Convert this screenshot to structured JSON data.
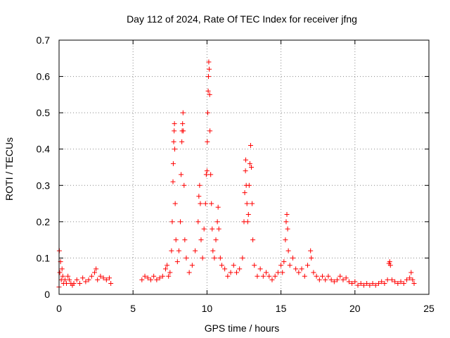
{
  "chart_data": {
    "type": "scatter",
    "title": "Day 112 of 2024, Rate Of TEC Index for receiver jfng",
    "xlabel": "GPS time / hours",
    "ylabel": "ROTI / TECUs",
    "xlim": [
      0,
      25
    ],
    "ylim": [
      0,
      0.7
    ],
    "x_ticks": [
      0,
      5,
      10,
      15,
      20,
      25
    ],
    "x_tick_labels": [
      "0",
      "5",
      "10",
      "15",
      "20",
      "25"
    ],
    "y_ticks": [
      0,
      0.1,
      0.2,
      0.3,
      0.4,
      0.5,
      0.6,
      0.7
    ],
    "y_tick_labels": [
      "0",
      "0.1",
      "0.2",
      "0.3",
      "0.4",
      "0.5",
      "0.6",
      "0.7"
    ],
    "grid": true,
    "marker": "+",
    "marker_color": "#ff0000",
    "series": [
      {
        "name": "ROTI",
        "points": [
          [
            0.0,
            0.02
          ],
          [
            0.02,
            0.12
          ],
          [
            0.05,
            0.06
          ],
          [
            0.1,
            0.09
          ],
          [
            0.15,
            0.04
          ],
          [
            0.2,
            0.07
          ],
          [
            0.25,
            0.05
          ],
          [
            0.3,
            0.03
          ],
          [
            0.4,
            0.04
          ],
          [
            0.5,
            0.03
          ],
          [
            0.6,
            0.05
          ],
          [
            0.7,
            0.04
          ],
          [
            0.8,
            0.03
          ],
          [
            0.9,
            0.025
          ],
          [
            1.0,
            0.03
          ],
          [
            1.2,
            0.04
          ],
          [
            1.4,
            0.03
          ],
          [
            1.6,
            0.045
          ],
          [
            1.8,
            0.035
          ],
          [
            2.0,
            0.04
          ],
          [
            2.2,
            0.05
          ],
          [
            2.4,
            0.06
          ],
          [
            2.5,
            0.07
          ],
          [
            2.6,
            0.04
          ],
          [
            2.8,
            0.05
          ],
          [
            3.0,
            0.045
          ],
          [
            3.2,
            0.04
          ],
          [
            3.4,
            0.045
          ],
          [
            3.5,
            0.03
          ],
          [
            5.6,
            0.04
          ],
          [
            5.8,
            0.05
          ],
          [
            6.0,
            0.045
          ],
          [
            6.2,
            0.04
          ],
          [
            6.4,
            0.05
          ],
          [
            6.6,
            0.04
          ],
          [
            6.8,
            0.045
          ],
          [
            7.0,
            0.05
          ],
          [
            7.2,
            0.07
          ],
          [
            7.3,
            0.08
          ],
          [
            7.4,
            0.05
          ],
          [
            7.5,
            0.06
          ],
          [
            7.6,
            0.12
          ],
          [
            7.65,
            0.2
          ],
          [
            7.7,
            0.31
          ],
          [
            7.72,
            0.36
          ],
          [
            7.75,
            0.42
          ],
          [
            7.78,
            0.45
          ],
          [
            7.8,
            0.47
          ],
          [
            7.82,
            0.4
          ],
          [
            7.85,
            0.25
          ],
          [
            7.9,
            0.15
          ],
          [
            8.0,
            0.09
          ],
          [
            8.1,
            0.12
          ],
          [
            8.2,
            0.2
          ],
          [
            8.25,
            0.33
          ],
          [
            8.3,
            0.42
          ],
          [
            8.32,
            0.45
          ],
          [
            8.35,
            0.47
          ],
          [
            8.38,
            0.5
          ],
          [
            8.4,
            0.45
          ],
          [
            8.45,
            0.3
          ],
          [
            8.5,
            0.15
          ],
          [
            8.6,
            0.1
          ],
          [
            8.8,
            0.06
          ],
          [
            9.0,
            0.08
          ],
          [
            9.2,
            0.12
          ],
          [
            9.4,
            0.2
          ],
          [
            9.45,
            0.27
          ],
          [
            9.5,
            0.3
          ],
          [
            9.55,
            0.25
          ],
          [
            9.6,
            0.15
          ],
          [
            9.7,
            0.1
          ],
          [
            9.8,
            0.18
          ],
          [
            9.9,
            0.25
          ],
          [
            9.95,
            0.33
          ],
          [
            10.0,
            0.34
          ],
          [
            10.02,
            0.42
          ],
          [
            10.05,
            0.5
          ],
          [
            10.08,
            0.56
          ],
          [
            10.1,
            0.6
          ],
          [
            10.12,
            0.64
          ],
          [
            10.15,
            0.62
          ],
          [
            10.18,
            0.55
          ],
          [
            10.2,
            0.45
          ],
          [
            10.25,
            0.33
          ],
          [
            10.3,
            0.25
          ],
          [
            10.35,
            0.18
          ],
          [
            10.4,
            0.12
          ],
          [
            10.5,
            0.1
          ],
          [
            10.6,
            0.15
          ],
          [
            10.7,
            0.2
          ],
          [
            10.75,
            0.24
          ],
          [
            10.8,
            0.18
          ],
          [
            10.9,
            0.1
          ],
          [
            11.0,
            0.08
          ],
          [
            11.2,
            0.07
          ],
          [
            11.4,
            0.05
          ],
          [
            11.6,
            0.06
          ],
          [
            11.8,
            0.08
          ],
          [
            12.0,
            0.06
          ],
          [
            12.2,
            0.07
          ],
          [
            12.4,
            0.1
          ],
          [
            12.5,
            0.2
          ],
          [
            12.55,
            0.28
          ],
          [
            12.6,
            0.34
          ],
          [
            12.62,
            0.37
          ],
          [
            12.65,
            0.3
          ],
          [
            12.7,
            0.25
          ],
          [
            12.75,
            0.2
          ],
          [
            12.8,
            0.22
          ],
          [
            12.85,
            0.3
          ],
          [
            12.9,
            0.36
          ],
          [
            12.95,
            0.41
          ],
          [
            13.0,
            0.35
          ],
          [
            13.05,
            0.25
          ],
          [
            13.1,
            0.15
          ],
          [
            13.2,
            0.08
          ],
          [
            13.4,
            0.05
          ],
          [
            13.6,
            0.07
          ],
          [
            13.8,
            0.05
          ],
          [
            14.0,
            0.06
          ],
          [
            14.2,
            0.05
          ],
          [
            14.4,
            0.04
          ],
          [
            14.6,
            0.05
          ],
          [
            14.8,
            0.06
          ],
          [
            15.0,
            0.08
          ],
          [
            15.1,
            0.06
          ],
          [
            15.2,
            0.09
          ],
          [
            15.3,
            0.15
          ],
          [
            15.35,
            0.2
          ],
          [
            15.4,
            0.22
          ],
          [
            15.45,
            0.18
          ],
          [
            15.5,
            0.12
          ],
          [
            15.6,
            0.08
          ],
          [
            15.8,
            0.1
          ],
          [
            16.0,
            0.07
          ],
          [
            16.2,
            0.06
          ],
          [
            16.4,
            0.07
          ],
          [
            16.6,
            0.05
          ],
          [
            16.8,
            0.08
          ],
          [
            17.0,
            0.12
          ],
          [
            17.05,
            0.1
          ],
          [
            17.2,
            0.06
          ],
          [
            17.4,
            0.05
          ],
          [
            17.6,
            0.04
          ],
          [
            17.8,
            0.05
          ],
          [
            18.0,
            0.04
          ],
          [
            18.2,
            0.05
          ],
          [
            18.4,
            0.04
          ],
          [
            18.6,
            0.035
          ],
          [
            18.8,
            0.04
          ],
          [
            19.0,
            0.05
          ],
          [
            19.2,
            0.04
          ],
          [
            19.4,
            0.045
          ],
          [
            19.6,
            0.035
          ],
          [
            19.8,
            0.03
          ],
          [
            20.0,
            0.035
          ],
          [
            20.2,
            0.025
          ],
          [
            20.4,
            0.03
          ],
          [
            20.6,
            0.025
          ],
          [
            20.8,
            0.03
          ],
          [
            21.0,
            0.025
          ],
          [
            21.2,
            0.03
          ],
          [
            21.4,
            0.025
          ],
          [
            21.6,
            0.03
          ],
          [
            21.8,
            0.035
          ],
          [
            22.0,
            0.03
          ],
          [
            22.2,
            0.04
          ],
          [
            22.3,
            0.085
          ],
          [
            22.35,
            0.09
          ],
          [
            22.4,
            0.08
          ],
          [
            22.5,
            0.04
          ],
          [
            22.7,
            0.035
          ],
          [
            22.9,
            0.03
          ],
          [
            23.1,
            0.035
          ],
          [
            23.3,
            0.03
          ],
          [
            23.5,
            0.04
          ],
          [
            23.7,
            0.045
          ],
          [
            23.8,
            0.06
          ],
          [
            23.9,
            0.04
          ],
          [
            24.0,
            0.03
          ]
        ]
      }
    ]
  }
}
